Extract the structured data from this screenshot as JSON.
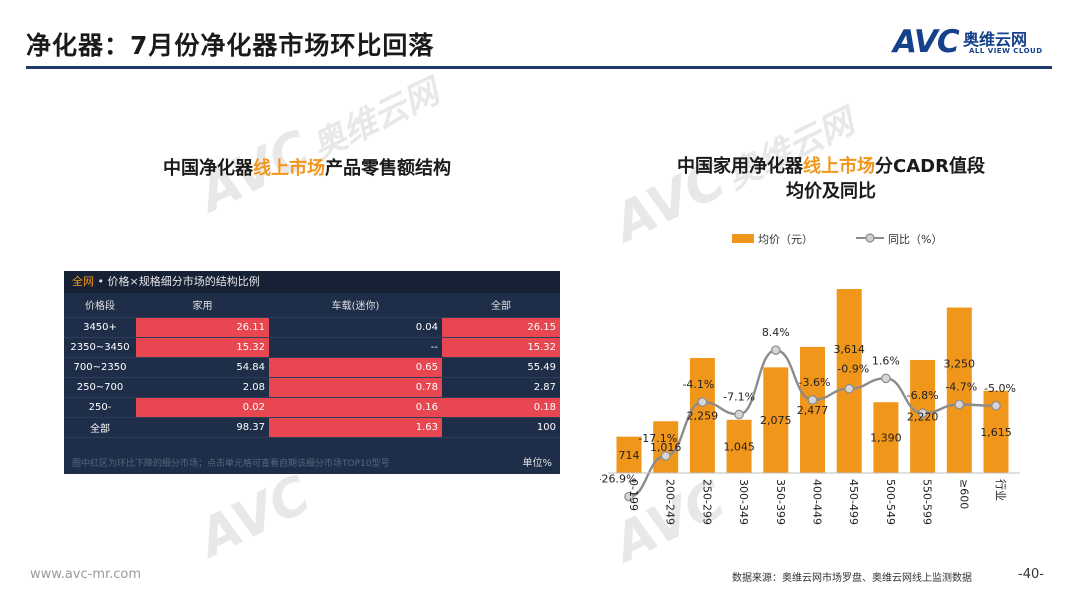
{
  "header": {
    "title": "净化器：7月份净化器市场环比回落",
    "logo_text": "AVC",
    "logo_cn": "奥维云网",
    "logo_en": "ALL VIEW CLOUD"
  },
  "watermark": {
    "avc": "AVC",
    "cn": "奥维云网",
    "en": "ALL VIEW CLOUD"
  },
  "left_panel": {
    "title_pre": "中国净化器",
    "title_hl": "线上市场",
    "title_post": "产品零售额结构",
    "table": {
      "header_accent": "全网",
      "header_text": " • 价格×规格细分市场的结构比例",
      "columns": [
        "价格段",
        "家用",
        "车载(迷你)",
        "全部"
      ],
      "rows": [
        {
          "label": "3450+",
          "cells": [
            "26.11",
            "0.04",
            "26.15"
          ],
          "red": [
            true,
            false,
            true
          ]
        },
        {
          "label": "2350~3450",
          "cells": [
            "15.32",
            "--",
            "15.32"
          ],
          "red": [
            true,
            false,
            true
          ]
        },
        {
          "label": "700~2350",
          "cells": [
            "54.84",
            "0.65",
            "55.49"
          ],
          "red": [
            false,
            true,
            false
          ]
        },
        {
          "label": "250~700",
          "cells": [
            "2.08",
            "0.78",
            "2.87"
          ],
          "red": [
            false,
            true,
            false
          ]
        },
        {
          "label": "250-",
          "cells": [
            "0.02",
            "0.16",
            "0.18"
          ],
          "red": [
            true,
            true,
            true
          ]
        },
        {
          "label": "全部",
          "cells": [
            "98.37",
            "1.63",
            "100"
          ],
          "red": [
            false,
            true,
            false
          ]
        }
      ],
      "footnote": "图中红区为环比下降的细分市场；点击单元格可查看自期该细分市场TOP10型号",
      "unit": "单位%"
    }
  },
  "right_panel": {
    "title_line1_pre": "中国家用净化器",
    "title_line1_hl": "线上市场",
    "title_line1_post": "分CADR值段",
    "title_line2": "均价及同比"
  },
  "chart_data": {
    "type": "bar",
    "categories": [
      "0-199",
      "200-249",
      "250-299",
      "300-349",
      "350-399",
      "400-449",
      "450-499",
      "500-549",
      "550-599",
      "≥600",
      "行业"
    ],
    "series": [
      {
        "name": "均价（元）",
        "type": "bar",
        "values": [
          714,
          1016,
          2259,
          1045,
          2075,
          2477,
          3614,
          1390,
          2220,
          3250,
          1615
        ],
        "color": "#f0961b",
        "labels": [
          "714",
          "1,016",
          "2,259",
          "1,045",
          "2,075",
          "2,477",
          "3,614",
          "1,390",
          "2,220",
          "3,250",
          "1,615"
        ]
      },
      {
        "name": "同比（%）",
        "type": "line",
        "values": [
          -26.9,
          -17.1,
          -4.1,
          -7.1,
          8.4,
          -3.6,
          -0.9,
          1.6,
          -6.8,
          -4.7,
          -5.0
        ],
        "color": "#8c8c8c",
        "labels": [
          "-26.9%",
          "-17.1%",
          "-4.1%",
          "-7.1%",
          "8.4%",
          "-3.6%",
          "-0.9%",
          "1.6%",
          "-6.8%",
          "-4.7%",
          "-5.0%"
        ]
      }
    ],
    "legend_placement": "top",
    "grid": false
  },
  "footer": {
    "url": "www.avc-mr.com",
    "source": "数据来源：奥维云网市场罗盘、奥维云网线上监测数据",
    "page": "-40-"
  }
}
